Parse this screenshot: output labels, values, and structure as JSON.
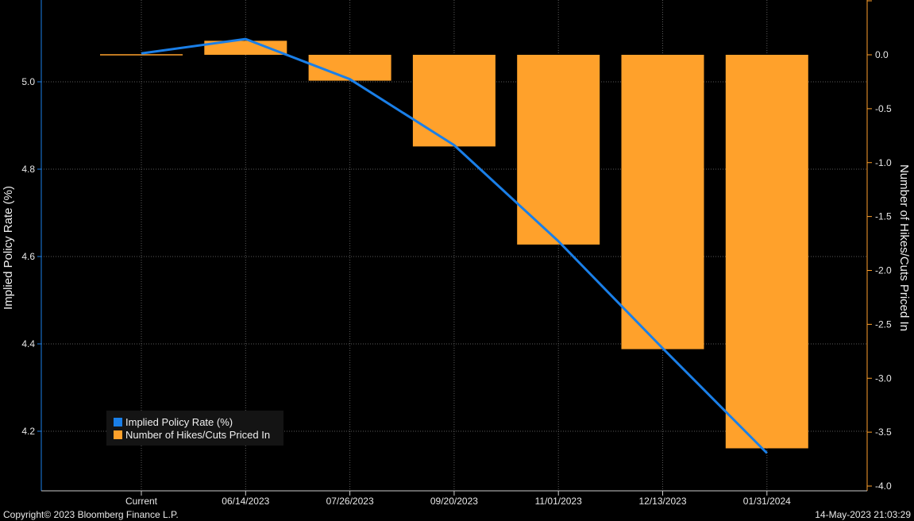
{
  "chart_data": {
    "type": "bar+line",
    "categories": [
      "Current",
      "06/14/2023",
      "07/26/2023",
      "09/20/2023",
      "11/01/2023",
      "12/13/2023",
      "01/31/2024"
    ],
    "series": [
      {
        "name": "Implied Policy Rate (%)",
        "type": "line",
        "axis": "left",
        "values": [
          5.065,
          5.098,
          5.006,
          4.855,
          4.635,
          4.39,
          4.15
        ]
      },
      {
        "name": "Number of Hikes/Cuts Priced In",
        "type": "bar",
        "axis": "right",
        "values": [
          0.0,
          0.13,
          -0.24,
          -0.85,
          -1.76,
          -2.73,
          -3.65
        ]
      }
    ],
    "ylabel": "Implied Policy Rate (%)",
    "y2label": "Number of Hikes/Cuts Priced In",
    "ylim": [
      4.1,
      5.18
    ],
    "y2lim": [
      -4.0,
      0.5
    ],
    "yticks": [
      "4.2",
      "4.4",
      "4.6",
      "4.8",
      "5.0"
    ],
    "y2ticks": [
      "0.0",
      "-0.5",
      "-1.0",
      "-1.5",
      "-2.0",
      "-2.5",
      "-3.0",
      "-3.5",
      "-4.0"
    ],
    "grid": true,
    "legend_position": "bottom-left"
  },
  "colors": {
    "line": "#1a7fe8",
    "bar": "#ffa12b",
    "background": "#000000",
    "grid": "#5a5a5a"
  },
  "footer": {
    "copyright": "Copyright© 2023 Bloomberg Finance L.P.",
    "timestamp": "14-May-2023 21:03:29"
  }
}
